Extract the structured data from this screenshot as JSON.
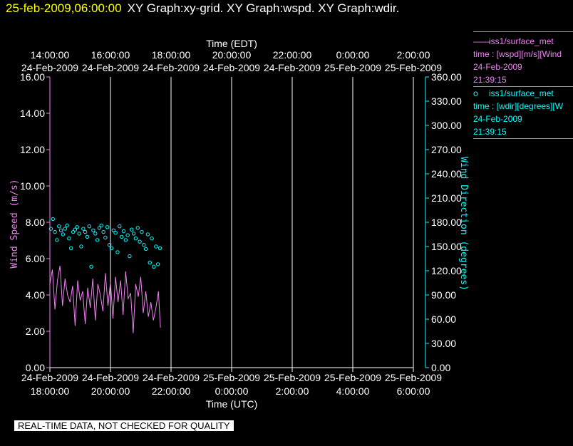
{
  "header": {
    "timestamp": "25-feb-2009,06:00:00",
    "graphs": "XY Graph:xy-grid.  XY Graph:wspd.  XY Graph:wdir."
  },
  "legend": [
    {
      "symbol": "——",
      "title": "iss1/surface_met",
      "desc": "time : [wspd][m/s][Wind",
      "date": "24-Feb-2009",
      "time": "21:39:15",
      "color": "#ee82ee"
    },
    {
      "symbol": "o",
      "title": "iss1/surface_met",
      "desc": "time : [wdir][degrees][W",
      "date": "24-Feb-2009",
      "time": "21:39:15",
      "color": "#00ffff"
    }
  ],
  "quality_notice": "REAL-TIME DATA, NOT CHECKED FOR QUALITY",
  "chart_data": {
    "type": "line",
    "top_axis": {
      "label": "Time (EDT)",
      "ticks": [
        {
          "time": "14:00:00",
          "date": "24-Feb-2009"
        },
        {
          "time": "16:00:00",
          "date": "24-Feb-2009"
        },
        {
          "time": "18:00:00",
          "date": "24-Feb-2009"
        },
        {
          "time": "20:00:00",
          "date": "24-Feb-2009"
        },
        {
          "time": "22:00:00",
          "date": "24-Feb-2009"
        },
        {
          "time": "0:00:00",
          "date": "25-Feb-2009"
        },
        {
          "time": "2:00:00",
          "date": "25-Feb-2009"
        }
      ]
    },
    "bottom_axis": {
      "label": "Time (UTC)",
      "range": [
        "24-Feb-2009 18:00:00",
        "25-Feb-2009 06:00:00"
      ],
      "ticks": [
        {
          "date": "24-Feb-2009",
          "time": "18:00:00"
        },
        {
          "date": "24-Feb-2009",
          "time": "20:00:00"
        },
        {
          "date": "24-Feb-2009",
          "time": "22:00:00"
        },
        {
          "date": "25-Feb-2009",
          "time": "0:00:00"
        },
        {
          "date": "25-Feb-2009",
          "time": "2:00:00"
        },
        {
          "date": "25-Feb-2009",
          "time": "4:00:00"
        },
        {
          "date": "25-Feb-2009",
          "time": "6:00:00"
        }
      ]
    },
    "left_axis": {
      "label": "Wind Speed (m/s)",
      "ylim": [
        0,
        16
      ],
      "ticks": [
        "0.00",
        "2.00",
        "4.00",
        "6.00",
        "8.00",
        "10.00",
        "12.00",
        "14.00",
        "16.00"
      ],
      "color": "#ee82ee"
    },
    "right_axis": {
      "label": "Wind Direction (degrees)",
      "ylim": [
        0,
        360
      ],
      "ticks": [
        "0.00",
        "30.00",
        "60.00",
        "90.00",
        "120.00",
        "150.00",
        "180.00",
        "210.00",
        "240.00",
        "270.00",
        "300.00",
        "330.00",
        "360.00"
      ],
      "color": "#00ffff"
    },
    "grid": true,
    "series": [
      {
        "key": "wspd",
        "style": "line",
        "color": "#ee82ee",
        "x": [
          "18:00",
          "18:05",
          "18:10",
          "18:15",
          "18:20",
          "18:25",
          "18:30",
          "18:35",
          "18:40",
          "18:45",
          "18:50",
          "18:55",
          "19:00",
          "19:05",
          "19:10",
          "19:15",
          "19:20",
          "19:25",
          "19:30",
          "19:35",
          "19:40",
          "19:45",
          "19:50",
          "19:55",
          "20:00",
          "20:05",
          "20:10",
          "20:15",
          "20:20",
          "20:25",
          "20:30",
          "20:35",
          "20:40",
          "20:45",
          "20:50",
          "20:55",
          "21:00",
          "21:05",
          "21:10",
          "21:15",
          "21:20",
          "21:25",
          "21:30",
          "21:35",
          "21:39"
        ],
        "y": [
          4.6,
          5.4,
          3.2,
          4.8,
          5.6,
          3.4,
          4.9,
          4.0,
          3.6,
          4.5,
          2.3,
          4.8,
          3.7,
          4.2,
          2.4,
          4.4,
          3.3,
          4.9,
          2.6,
          4.6,
          4.0,
          3.1,
          5.2,
          3.4,
          4.7,
          2.7,
          5.0,
          3.6,
          4.8,
          2.9,
          5.3,
          3.8,
          4.1,
          1.9,
          4.6,
          3.9,
          5.0,
          3.0,
          4.2,
          2.8,
          3.6,
          2.6,
          3.3,
          4.2,
          2.2
        ]
      },
      {
        "key": "wdir",
        "style": "points",
        "color": "#00ffff",
        "x": [
          "18:02",
          "18:06",
          "18:10",
          "18:14",
          "18:18",
          "18:22",
          "18:26",
          "18:30",
          "18:34",
          "18:38",
          "18:42",
          "18:46",
          "18:50",
          "18:54",
          "18:58",
          "19:02",
          "19:06",
          "19:10",
          "19:14",
          "19:18",
          "19:22",
          "19:26",
          "19:30",
          "19:34",
          "19:38",
          "19:42",
          "19:46",
          "19:50",
          "19:54",
          "19:58",
          "20:02",
          "20:06",
          "20:10",
          "20:14",
          "20:18",
          "20:22",
          "20:26",
          "20:30",
          "20:34",
          "20:38",
          "20:42",
          "20:46",
          "20:50",
          "20:54",
          "20:58",
          "21:02",
          "21:06",
          "21:10",
          "21:14",
          "21:18",
          "21:22",
          "21:26",
          "21:30",
          "21:34",
          "21:38"
        ],
        "y": [
          172,
          184,
          168,
          158,
          175,
          170,
          165,
          172,
          176,
          160,
          148,
          168,
          171,
          174,
          166,
          150,
          172,
          168,
          162,
          175,
          125,
          170,
          166,
          158,
          173,
          176,
          168,
          161,
          174,
          152,
          148,
          170,
          167,
          143,
          175,
          162,
          169,
          158,
          164,
          138,
          171,
          166,
          160,
          173,
          156,
          168,
          152,
          147,
          165,
          130,
          160,
          125,
          150,
          128,
          148
        ]
      }
    ]
  }
}
